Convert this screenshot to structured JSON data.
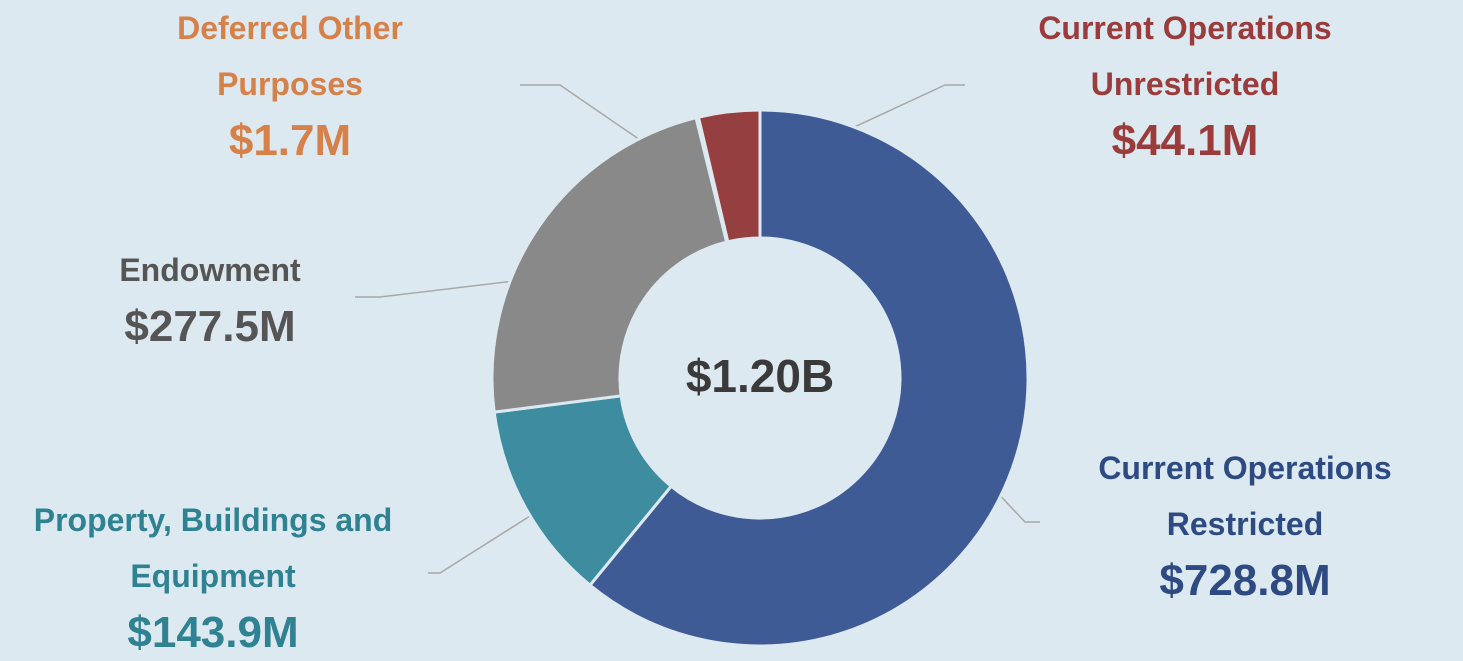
{
  "chart_data": {
    "type": "donut",
    "categories": [
      "Current Operations Restricted",
      "Property, Buildings and Equipment",
      "Endowment",
      "Deferred Other Purposes",
      "Current Operations Unrestricted"
    ],
    "values": [
      728.8,
      143.9,
      277.5,
      1.7,
      44.1
    ],
    "value_labels": [
      "$728.8M",
      "$143.9M",
      "$277.5M",
      "$1.7M",
      "$44.1M"
    ],
    "colors": [
      "#3f5b96",
      "#3d8ca0",
      "#898989",
      "#e8913a",
      "#963f40"
    ],
    "label_colors": [
      "#2d4a82",
      "#2f8291",
      "#555555",
      "#d6804a",
      "#9a3b3c"
    ],
    "center_label": "$1.20B"
  }
}
